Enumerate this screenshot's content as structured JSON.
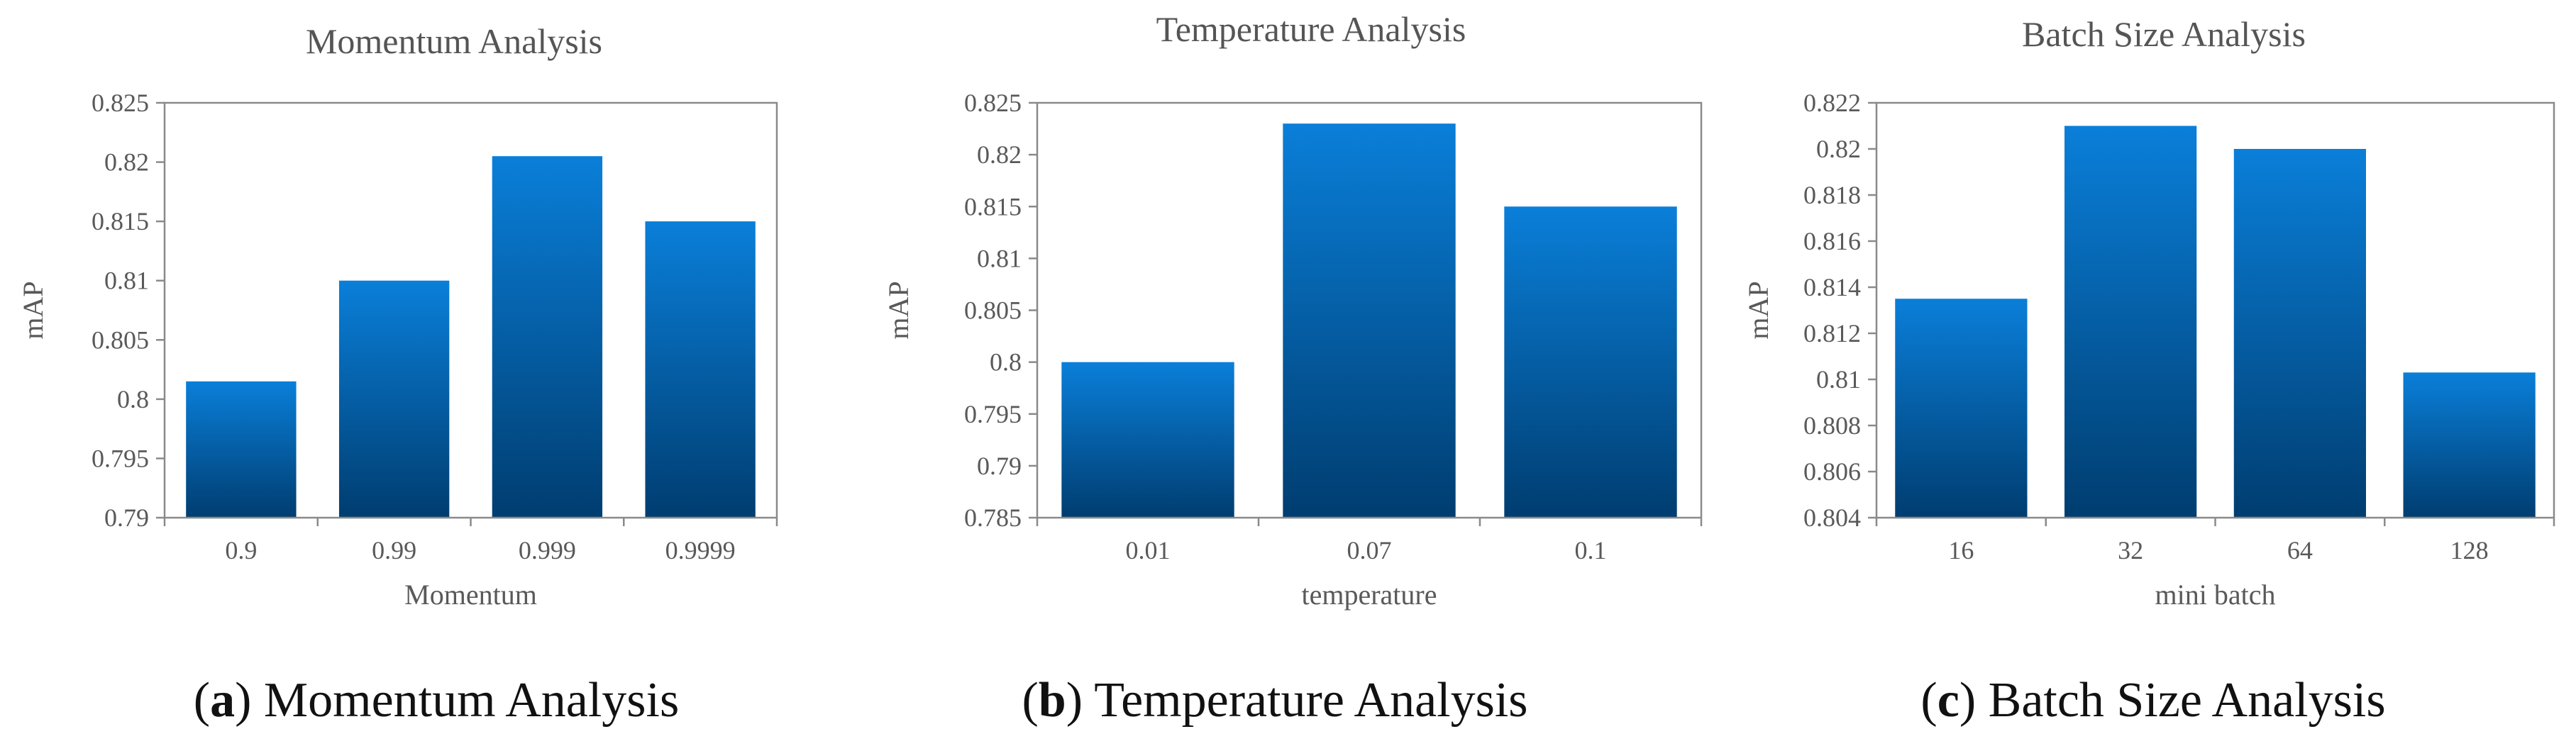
{
  "chart_data": [
    {
      "type": "bar",
      "title": "Momentum Analysis",
      "xlabel": "Momentum",
      "ylabel": "mAP",
      "categories": [
        "0.9",
        "0.99",
        "0.999",
        "0.9999"
      ],
      "values": [
        0.8015,
        0.81,
        0.8205,
        0.815
      ],
      "ylim": [
        0.79,
        0.825
      ],
      "yticks": [
        "0.79",
        "0.795",
        "0.8",
        "0.805",
        "0.81",
        "0.815",
        "0.82",
        "0.825"
      ],
      "caption_letter": "a",
      "caption_text": "Momentum Analysis",
      "grid": false
    },
    {
      "type": "bar",
      "title": "Temperature Analysis",
      "xlabel": "temperature",
      "ylabel": "mAP",
      "categories": [
        "0.01",
        "0.07",
        "0.1"
      ],
      "values": [
        0.8,
        0.823,
        0.815
      ],
      "ylim": [
        0.785,
        0.825
      ],
      "yticks": [
        "0.785",
        "0.79",
        "0.795",
        "0.8",
        "0.805",
        "0.81",
        "0.815",
        "0.82",
        "0.825"
      ],
      "caption_letter": "b",
      "caption_text": "Temperature Analysis",
      "grid": false
    },
    {
      "type": "bar",
      "title": "Batch Size Analysis",
      "xlabel": "mini batch",
      "ylabel": "mAP",
      "categories": [
        "16",
        "32",
        "64",
        "128"
      ],
      "values": [
        0.8135,
        0.821,
        0.82,
        0.8103
      ],
      "ylim": [
        0.804,
        0.822
      ],
      "yticks": [
        "0.804",
        "0.806",
        "0.808",
        "0.81",
        "0.812",
        "0.814",
        "0.816",
        "0.818",
        "0.82",
        "0.822"
      ],
      "caption_letter": "c",
      "caption_text": "Batch Size Analysis",
      "grid": false
    }
  ],
  "colors": {
    "bar_top": "#0a7fd9",
    "bar_bottom": "#003d70",
    "axis": "#8a8a8a"
  }
}
